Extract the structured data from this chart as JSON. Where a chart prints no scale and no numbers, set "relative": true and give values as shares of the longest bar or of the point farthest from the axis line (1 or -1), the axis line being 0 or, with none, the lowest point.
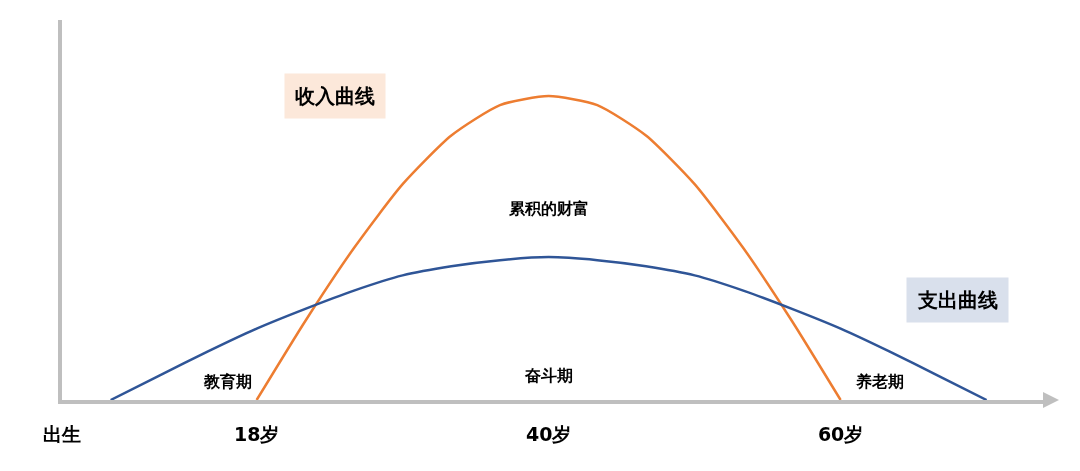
{
  "chart_data": {
    "type": "line",
    "relative": true,
    "categories": [
      "出生",
      null,
      null,
      null,
      "18岁",
      null,
      null,
      null,
      null,
      null,
      "40岁",
      null,
      null,
      null,
      null,
      null,
      "60岁",
      null,
      null,
      null,
      null
    ],
    "series": [
      {
        "name": "收入曲线",
        "color": "#ed7d31",
        "values": [
          null,
          null,
          null,
          null,
          0,
          0.26,
          0.5,
          0.71,
          0.87,
          0.97,
          1,
          0.97,
          0.87,
          0.71,
          0.5,
          0.26,
          0,
          null,
          null,
          null,
          null
        ]
      },
      {
        "name": "支出曲线",
        "color": "#2f5597",
        "values": [
          null,
          0,
          0.08,
          0.16,
          0.235,
          0.3,
          0.36,
          0.41,
          0.44,
          0.46,
          0.47,
          0.46,
          0.44,
          0.41,
          0.36,
          0.3,
          0.235,
          0.16,
          0.08,
          0,
          null
        ]
      }
    ],
    "annotations": [
      "累积的财富",
      "教育期",
      "奋斗期",
      "养老期"
    ]
  }
}
